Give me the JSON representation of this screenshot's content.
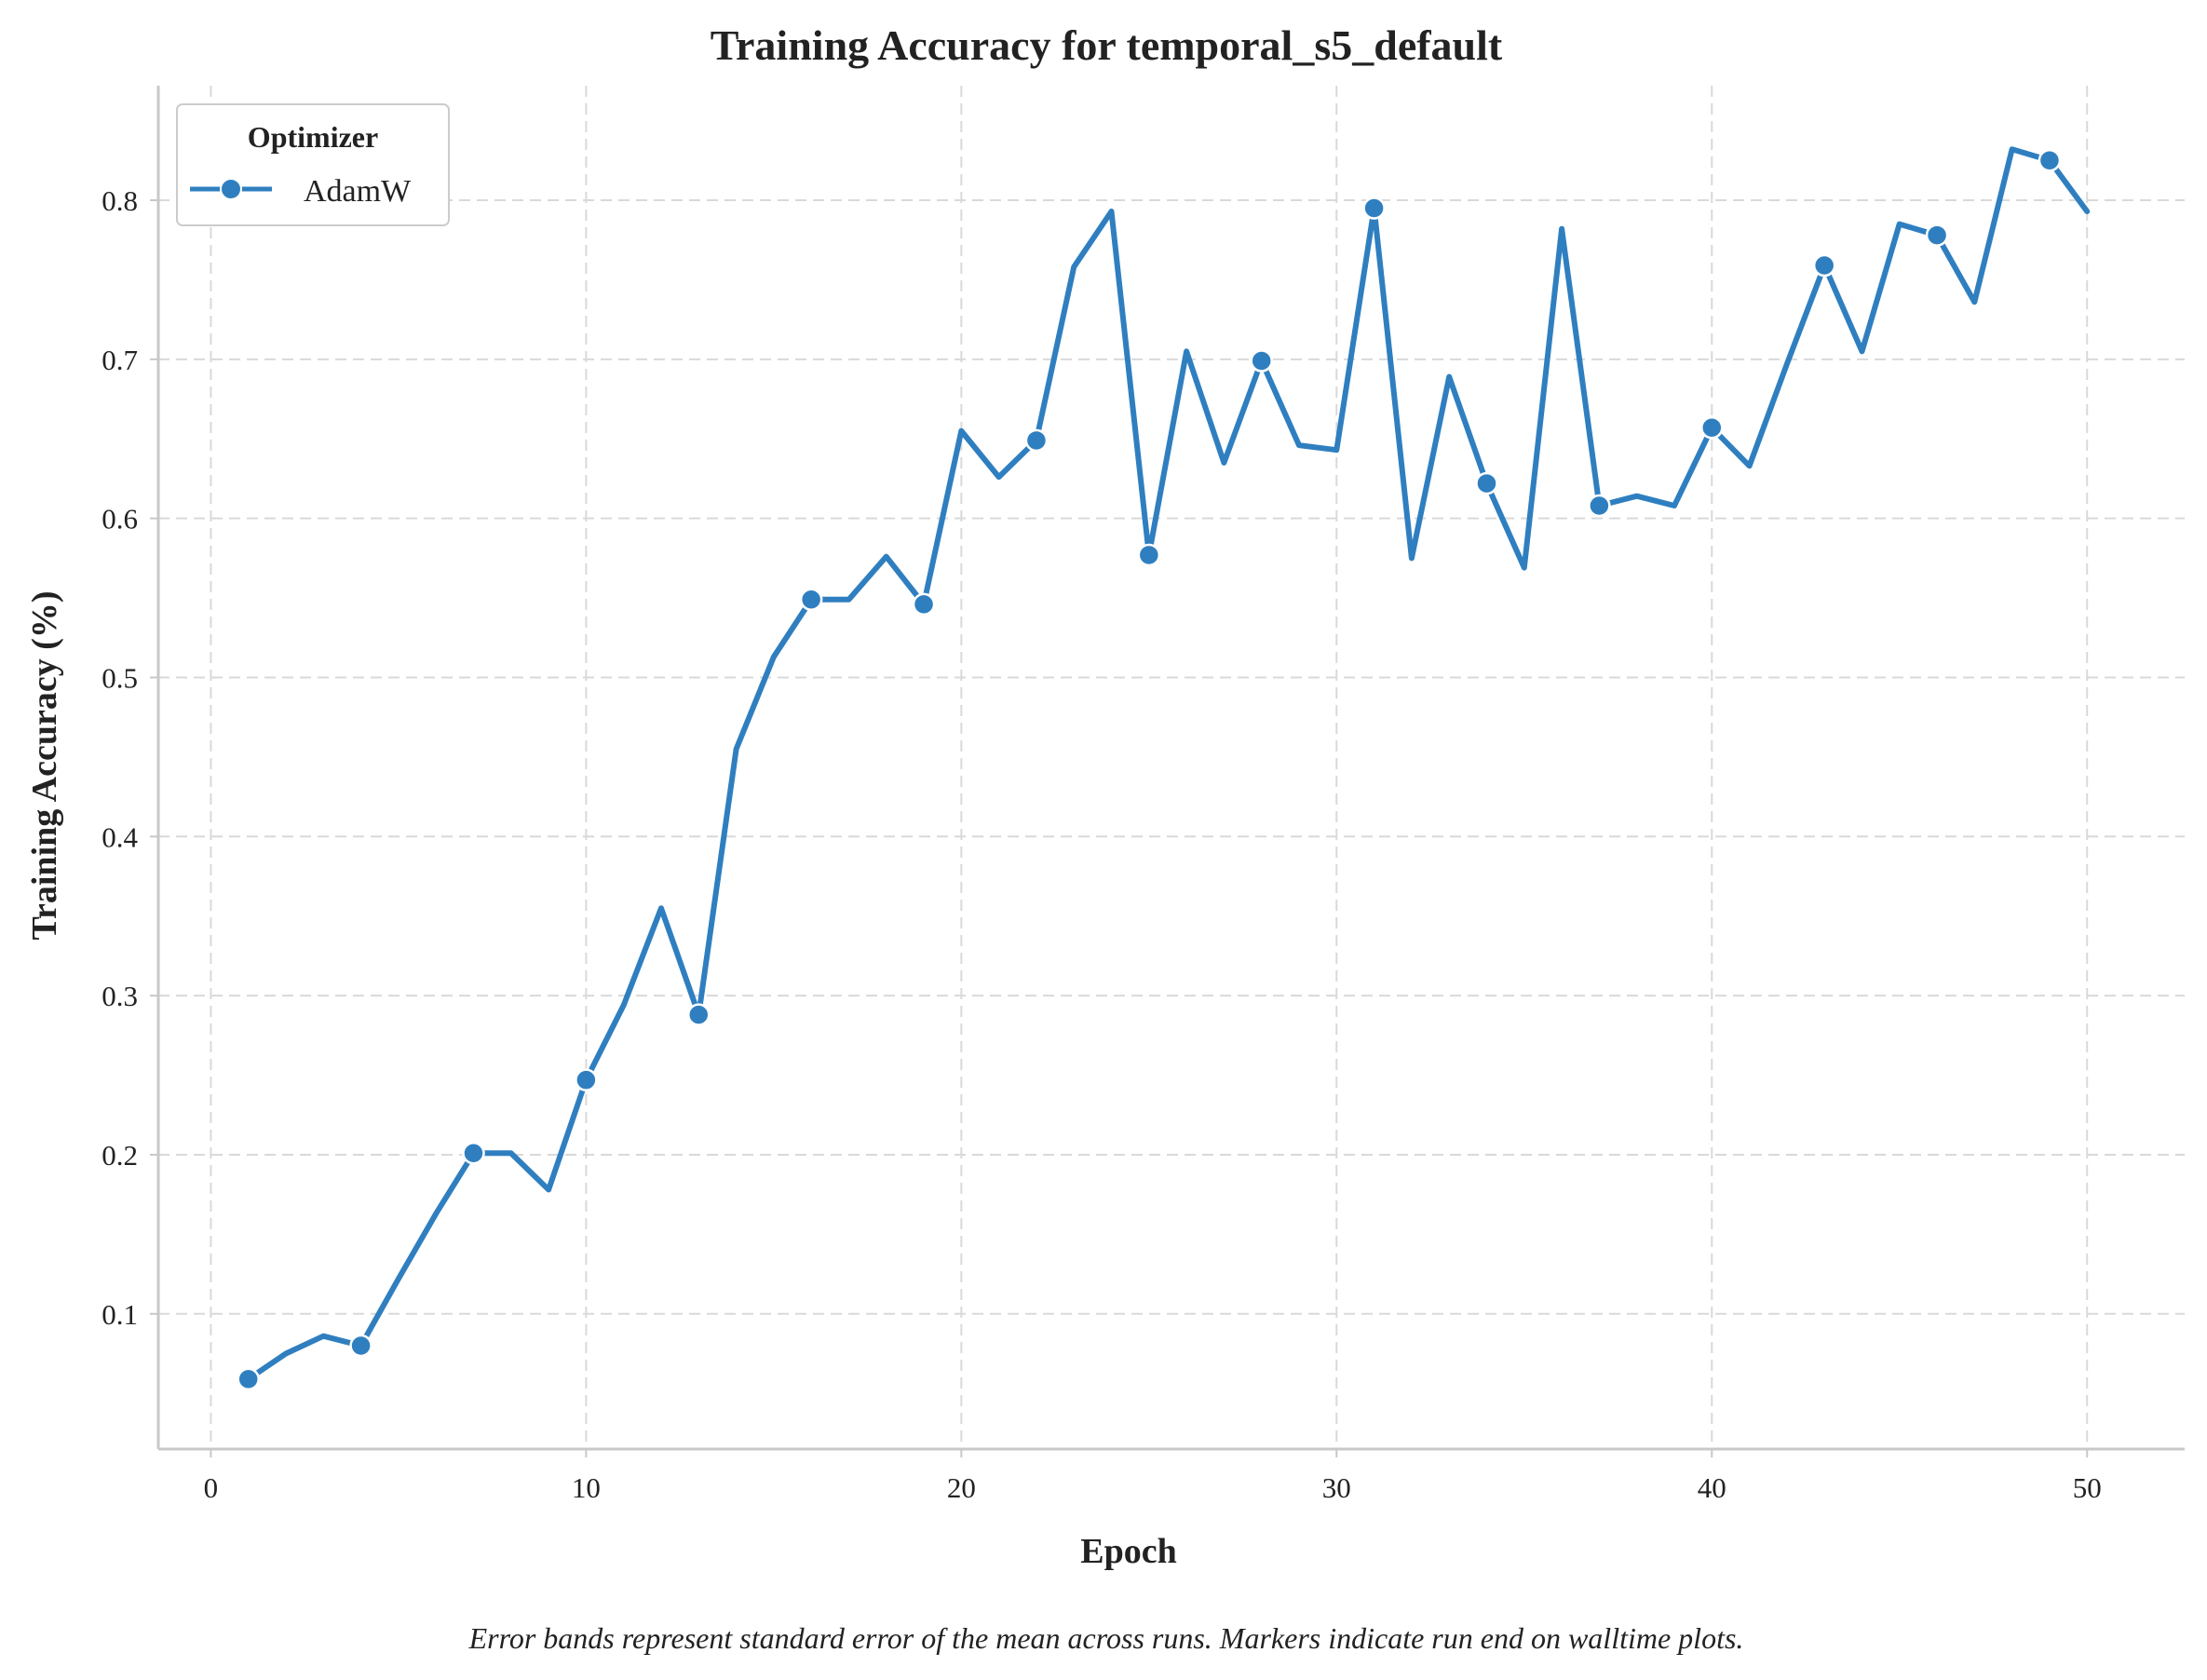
{
  "chart_data": {
    "type": "line",
    "title": "Training Accuracy for temporal_s5_default",
    "xlabel": "Epoch",
    "ylabel": "Training Accuracy (%)",
    "xlim": [
      -1.4,
      52.6
    ],
    "ylim": [
      0.015,
      0.872
    ],
    "xticks": [
      0,
      10,
      20,
      30,
      40,
      50
    ],
    "yticks": [
      0.1,
      0.2,
      0.3,
      0.4,
      0.5,
      0.6,
      0.7,
      0.8
    ],
    "xtick_labels": [
      "0",
      "10",
      "20",
      "30",
      "40",
      "50"
    ],
    "ytick_labels": [
      "0.1",
      "0.2",
      "0.3",
      "0.4",
      "0.5",
      "0.6",
      "0.7",
      "0.8"
    ],
    "grid": true,
    "legend": {
      "title": "Optimizer",
      "placement": "top-left"
    },
    "series": [
      {
        "name": "AdamW",
        "color": "#2f7fc0",
        "x": [
          1,
          2,
          3,
          4,
          5,
          6,
          7,
          8,
          9,
          10,
          11,
          12,
          13,
          14,
          15,
          16,
          17,
          18,
          19,
          20,
          21,
          22,
          23,
          24,
          25,
          26,
          27,
          28,
          29,
          30,
          31,
          32,
          33,
          34,
          35,
          36,
          37,
          38,
          39,
          40,
          41,
          42,
          43,
          44,
          45,
          46,
          47,
          48,
          49,
          50
        ],
        "y": [
          0.059,
          0.075,
          0.086,
          0.08,
          0.122,
          0.163,
          0.201,
          0.201,
          0.178,
          0.247,
          0.294,
          0.355,
          0.288,
          0.455,
          0.513,
          0.549,
          0.549,
          0.576,
          0.546,
          0.655,
          0.626,
          0.649,
          0.758,
          0.793,
          0.577,
          0.705,
          0.635,
          0.699,
          0.646,
          0.643,
          0.795,
          0.575,
          0.689,
          0.622,
          0.569,
          0.782,
          0.608,
          0.614,
          0.608,
          0.657,
          0.633,
          0.697,
          0.759,
          0.705,
          0.785,
          0.778,
          0.736,
          0.832,
          0.825,
          0.793
        ],
        "marker_x": [
          1,
          4,
          7,
          10,
          13,
          16,
          19,
          22,
          25,
          28,
          31,
          34,
          37,
          40,
          43,
          46,
          49
        ]
      }
    ]
  },
  "caption": "Error bands represent standard error of the mean across runs. Markers indicate run end on walltime plots."
}
